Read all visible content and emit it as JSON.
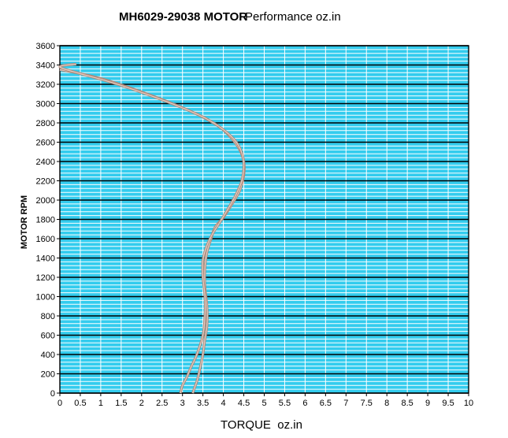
{
  "chart_data": {
    "type": "line",
    "title": "MH6029-29038 MOTOR",
    "subtitle": "Performance oz.in",
    "xlabel": "TORQUE  oz.in",
    "ylabel": "MOTOR RPM",
    "xlim": [
      0,
      10
    ],
    "ylim": [
      0,
      3600
    ],
    "x_ticks": [
      "0",
      "0.5",
      "1",
      "1.5",
      "2",
      "2.5",
      "3",
      "3.5",
      "4",
      "4.5",
      "5",
      "5.5",
      "6",
      "6.5",
      "7",
      "7.5",
      "8",
      "8.5",
      "9",
      "9.5",
      "10"
    ],
    "y_ticks": [
      "0",
      "200",
      "400",
      "600",
      "800",
      "1000",
      "1200",
      "1400",
      "1600",
      "1800",
      "2000",
      "2200",
      "2400",
      "2600",
      "2800",
      "3000",
      "3200",
      "3400",
      "3600"
    ],
    "grid": true,
    "colors": {
      "plot_bg": "#33ccee",
      "minor_grid": "#ffffff",
      "major_grid": "#000000",
      "curve_outer": "#b08878",
      "curve_inner": "#e0d0c8"
    },
    "series": [
      {
        "x": [
          0.0,
          0.4,
          1.0,
          1.6,
          2.2,
          2.7,
          3.1,
          3.5,
          3.9,
          4.2,
          4.4,
          4.5,
          4.5,
          4.4,
          4.2,
          4.0,
          3.8,
          3.7,
          3.6,
          3.55,
          3.55,
          3.6,
          3.6,
          3.55,
          3.5,
          3.45,
          3.4,
          3.35,
          3.3,
          3.25
        ],
        "y": [
          3350,
          3320,
          3260,
          3180,
          3090,
          3010,
          2940,
          2860,
          2760,
          2640,
          2520,
          2400,
          2260,
          2100,
          1950,
          1820,
          1720,
          1600,
          1460,
          1300,
          1100,
          900,
          700,
          560,
          400,
          300,
          200,
          120,
          60,
          0
        ]
      },
      {
        "x": [
          0.4,
          0.0,
          0.5,
          1.1,
          1.7,
          2.3,
          2.8,
          3.2,
          3.6,
          4.0,
          4.3,
          4.45,
          4.5,
          4.45,
          4.3,
          4.1,
          3.9,
          3.75,
          3.6,
          3.5,
          3.5,
          3.55,
          3.55,
          3.5,
          3.35,
          3.2,
          3.1,
          3.0,
          2.95
        ],
        "y": [
          3410,
          3380,
          3310,
          3240,
          3160,
          3070,
          2990,
          2920,
          2840,
          2730,
          2610,
          2490,
          2360,
          2200,
          2050,
          1900,
          1760,
          1660,
          1530,
          1380,
          1200,
          1000,
          800,
          600,
          400,
          260,
          160,
          80,
          0
        ]
      }
    ]
  }
}
